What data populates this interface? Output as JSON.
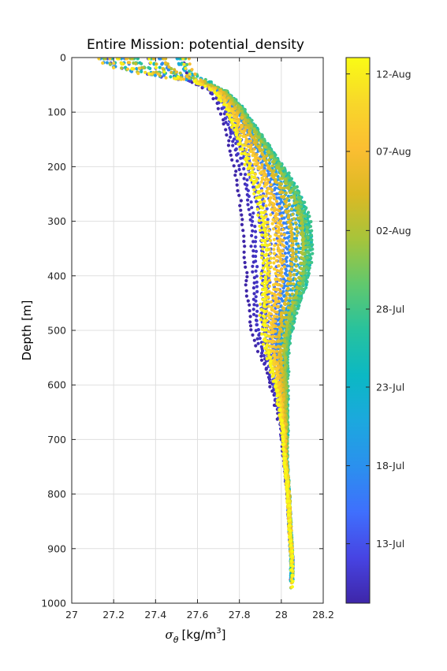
{
  "chart_data": {
    "type": "scatter",
    "title": "Entire Mission: potential_density",
    "xlabel_symbol": "σ",
    "xlabel_subscript": "θ",
    "xlabel_units": "[kg/m",
    "xlabel_units_sup": "3",
    "xlabel_units_end": "]",
    "ylabel": "Depth [m]",
    "xlim": [
      27,
      28.2
    ],
    "ylim": [
      0,
      1000
    ],
    "y_reversed": true,
    "grid": true,
    "x_ticks": [
      27,
      27.2,
      27.4,
      27.6,
      27.8,
      28,
      28.2
    ],
    "x_tick_labels": [
      "27",
      "27.2",
      "27.4",
      "27.6",
      "27.8",
      "28",
      "28.2"
    ],
    "y_ticks": [
      0,
      100,
      200,
      300,
      400,
      500,
      600,
      700,
      800,
      900,
      1000
    ],
    "y_tick_labels": [
      "0",
      "100",
      "200",
      "300",
      "400",
      "500",
      "600",
      "700",
      "800",
      "900",
      "1000"
    ],
    "colorbar": {
      "label_ticks": [
        {
          "label": "13-Jul",
          "frac": 0.109
        },
        {
          "label": "18-Jul",
          "frac": 0.252
        },
        {
          "label": "23-Jul",
          "frac": 0.396
        },
        {
          "label": "28-Jul",
          "frac": 0.539
        },
        {
          "label": "02-Aug",
          "frac": 0.683
        },
        {
          "label": "07-Aug",
          "frac": 0.828
        },
        {
          "label": "12-Aug",
          "frac": 0.97
        }
      ],
      "colors": [
        "#3e26a8",
        "#4744e3",
        "#3f6ffd",
        "#2b90ee",
        "#1ca8de",
        "#0bb8c4",
        "#27c29e",
        "#60c86e",
        "#a6c43b",
        "#dcb924",
        "#fbbe32",
        "#f8d72a",
        "#f9fb15"
      ]
    },
    "series": [
      {
        "values": [
          [
            27.12,
            8
          ],
          [
            27.2,
            14
          ],
          [
            27.3,
            22
          ],
          [
            27.42,
            32
          ],
          [
            27.55,
            44
          ],
          [
            27.64,
            62
          ],
          [
            27.68,
            90
          ],
          [
            27.7,
            130
          ],
          [
            27.72,
            180
          ],
          [
            27.74,
            240
          ],
          [
            27.75,
            300
          ],
          [
            27.76,
            360
          ],
          [
            27.78,
            420
          ],
          [
            27.8,
            470
          ],
          [
            27.84,
            520
          ],
          [
            27.9,
            570
          ],
          [
            27.95,
            620
          ],
          [
            27.99,
            680
          ],
          [
            28.01,
            740
          ],
          [
            28.03,
            800
          ],
          [
            28.04,
            860
          ],
          [
            28.05,
            920
          ],
          [
            28.05,
            972
          ]
        ]
      }
    ]
  }
}
